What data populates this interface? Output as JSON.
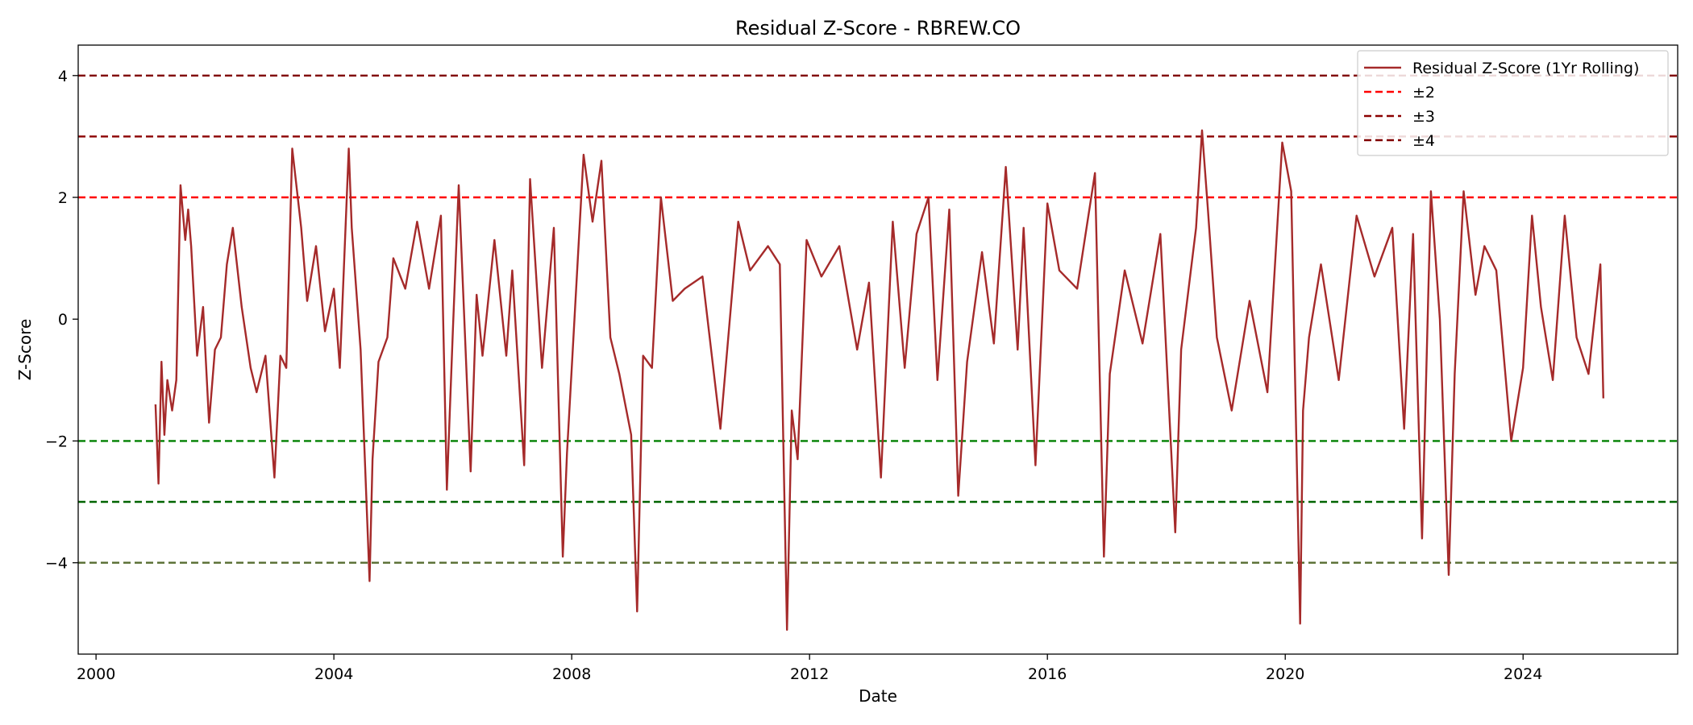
{
  "chart_data": {
    "type": "line",
    "title": "Residual Z-Score - RBREW.CO",
    "xlabel": "Date",
    "ylabel": "Z-Score",
    "xlim": [
      1999.7,
      2026.6
    ],
    "ylim": [
      -5.5,
      4.5
    ],
    "x_ticks": [
      2000,
      2004,
      2008,
      2012,
      2016,
      2020,
      2024
    ],
    "x_tick_labels": [
      "2000",
      "2004",
      "2008",
      "2012",
      "2016",
      "2020",
      "2024"
    ],
    "y_ticks": [
      4,
      2,
      0,
      -2,
      -4
    ],
    "y_tick_labels": [
      "4",
      "2",
      "0",
      "−2",
      "−4"
    ],
    "grid": false,
    "legend_position": "top-right",
    "legend": [
      {
        "label": "Residual Z-Score (1Yr Rolling)",
        "style": "solid",
        "color": "#a52a2a"
      },
      {
        "label": "±2",
        "style": "dashed",
        "color": "#ff0000"
      },
      {
        "label": "±3",
        "style": "dashed",
        "color": "#8b0000"
      },
      {
        "label": "±4",
        "style": "dashed",
        "color": "#800000"
      }
    ],
    "reference_lines": [
      {
        "y": 4,
        "color": "#800000"
      },
      {
        "y": 3,
        "color": "#8b0000"
      },
      {
        "y": 2,
        "color": "#ff0000"
      },
      {
        "y": -2,
        "color": "#008000"
      },
      {
        "y": -3,
        "color": "#006400"
      },
      {
        "y": -4,
        "color": "#556b2f"
      }
    ],
    "series": [
      {
        "name": "Residual Z-Score (1Yr Rolling)",
        "color": "#a52a2a",
        "x": [
          2001.0,
          2001.05,
          2001.1,
          2001.15,
          2001.2,
          2001.28,
          2001.35,
          2001.42,
          2001.5,
          2001.55,
          2001.6,
          2001.7,
          2001.8,
          2001.9,
          2002.0,
          2002.1,
          2002.2,
          2002.3,
          2002.45,
          2002.6,
          2002.7,
          2002.85,
          2003.0,
          2003.1,
          2003.2,
          2003.3,
          2003.45,
          2003.55,
          2003.7,
          2003.85,
          2004.0,
          2004.1,
          2004.25,
          2004.3,
          2004.45,
          2004.6,
          2004.65,
          2004.75,
          2004.9,
          2005.0,
          2005.2,
          2005.4,
          2005.6,
          2005.8,
          2005.9,
          2006.0,
          2006.1,
          2006.3,
          2006.4,
          2006.5,
          2006.7,
          2006.9,
          2007.0,
          2007.2,
          2007.3,
          2007.5,
          2007.7,
          2007.85,
          2007.92,
          2008.0,
          2008.2,
          2008.35,
          2008.5,
          2008.65,
          2008.8,
          2009.0,
          2009.1,
          2009.2,
          2009.35,
          2009.5,
          2009.7,
          2009.9,
          2010.2,
          2010.5,
          2010.8,
          2011.0,
          2011.3,
          2011.5,
          2011.62,
          2011.7,
          2011.8,
          2011.95,
          2012.2,
          2012.5,
          2012.8,
          2013.0,
          2013.2,
          2013.4,
          2013.6,
          2013.8,
          2014.0,
          2014.15,
          2014.35,
          2014.5,
          2014.65,
          2014.9,
          2015.1,
          2015.3,
          2015.5,
          2015.6,
          2015.8,
          2016.0,
          2016.2,
          2016.5,
          2016.8,
          2016.95,
          2017.05,
          2017.3,
          2017.6,
          2017.9,
          2018.15,
          2018.25,
          2018.5,
          2018.6,
          2018.7,
          2018.85,
          2019.1,
          2019.4,
          2019.7,
          2019.95,
          2020.1,
          2020.25,
          2020.3,
          2020.4,
          2020.6,
          2020.9,
          2021.2,
          2021.5,
          2021.8,
          2022.0,
          2022.15,
          2022.3,
          2022.45,
          2022.6,
          2022.75,
          2022.85,
          2023.0,
          2023.2,
          2023.35,
          2023.55,
          2023.8,
          2024.0,
          2024.15,
          2024.3,
          2024.5,
          2024.7,
          2024.9,
          2025.1,
          2025.3,
          2025.35
        ],
        "y": [
          -1.4,
          -2.7,
          -0.7,
          -1.9,
          -1.0,
          -1.5,
          -1.0,
          2.2,
          1.3,
          1.8,
          1.2,
          -0.6,
          0.2,
          -1.7,
          -0.5,
          -0.3,
          0.9,
          1.5,
          0.2,
          -0.8,
          -1.2,
          -0.6,
          -2.6,
          -0.6,
          -0.8,
          2.8,
          1.5,
          0.3,
          1.2,
          -0.2,
          0.5,
          -0.8,
          2.8,
          1.5,
          -0.5,
          -4.3,
          -2.3,
          -0.7,
          -0.3,
          1.0,
          0.5,
          1.6,
          0.5,
          1.7,
          -2.8,
          -0.2,
          2.2,
          -2.5,
          0.4,
          -0.6,
          1.3,
          -0.6,
          0.8,
          -2.4,
          2.3,
          -0.8,
          1.5,
          -3.9,
          -2.2,
          -0.8,
          2.7,
          1.6,
          2.6,
          -0.3,
          -0.9,
          -1.9,
          -4.8,
          -0.6,
          -0.8,
          2.0,
          0.3,
          0.5,
          0.7,
          -1.8,
          1.6,
          0.8,
          1.2,
          0.9,
          -5.1,
          -1.5,
          -2.3,
          1.3,
          0.7,
          1.2,
          -0.5,
          0.6,
          -2.6,
          1.6,
          -0.8,
          1.4,
          2.0,
          -1.0,
          1.8,
          -2.9,
          -0.7,
          1.1,
          -0.4,
          2.5,
          -0.5,
          1.5,
          -2.4,
          1.9,
          0.8,
          0.5,
          2.4,
          -3.9,
          -0.9,
          0.8,
          -0.4,
          1.4,
          -3.5,
          -0.5,
          1.5,
          3.1,
          1.8,
          -0.3,
          -1.5,
          0.3,
          -1.2,
          2.9,
          2.1,
          -5.0,
          -1.5,
          -0.3,
          0.9,
          -1.0,
          1.7,
          0.7,
          1.5,
          -1.8,
          1.4,
          -3.6,
          2.1,
          0.0,
          -4.2,
          -0.9,
          2.1,
          0.4,
          1.2,
          0.8,
          -2.0,
          -0.8,
          1.7,
          0.2,
          -1.0,
          1.7,
          -0.3,
          -0.9,
          0.9,
          -1.3
        ]
      }
    ]
  }
}
